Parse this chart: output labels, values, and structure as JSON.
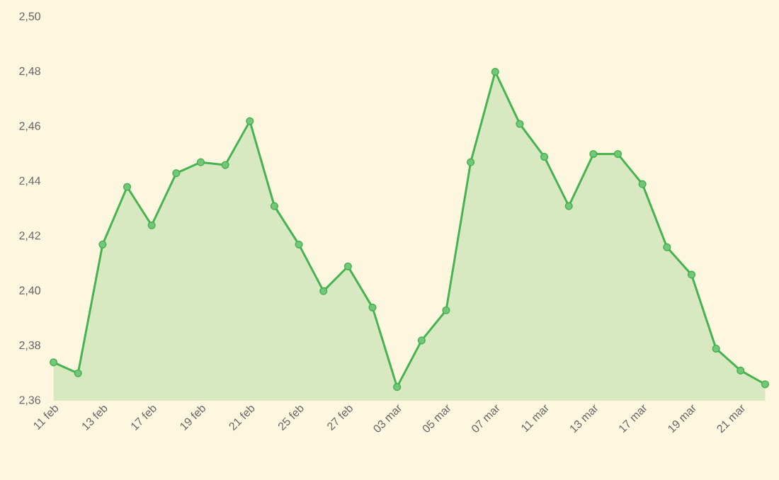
{
  "chart_data": {
    "type": "area",
    "color": "#45b34f",
    "marker": "circle",
    "grid": false,
    "categories": [
      "11 feb",
      null,
      "13 feb",
      null,
      "17 feb",
      null,
      "19 feb",
      null,
      "21 feb",
      null,
      "25 feb",
      null,
      "27 feb",
      null,
      "03 mar",
      null,
      "05 mar",
      null,
      "07 mar",
      null,
      "11 mar",
      null,
      "13 mar",
      null,
      "17 mar",
      null,
      "19 mar",
      null,
      "21 mar",
      null
    ],
    "values": [
      2.374,
      2.37,
      2.417,
      2.438,
      2.424,
      2.443,
      2.447,
      2.446,
      2.462,
      2.431,
      2.417,
      2.4,
      2.409,
      2.394,
      2.365,
      2.382,
      2.393,
      2.447,
      2.48,
      2.461,
      2.449,
      2.431,
      2.45,
      2.45,
      2.439,
      2.416,
      2.406,
      2.379,
      2.371,
      2.366
    ],
    "ylim": [
      2.36,
      2.5
    ],
    "yticks": [
      {
        "value": 2.36,
        "label": "2,36"
      },
      {
        "value": 2.38,
        "label": "2,38"
      },
      {
        "value": 2.4,
        "label": "2,40"
      },
      {
        "value": 2.42,
        "label": "2,42"
      },
      {
        "value": 2.44,
        "label": "2,44"
      },
      {
        "value": 2.46,
        "label": "2,46"
      },
      {
        "value": 2.48,
        "label": "2,48"
      },
      {
        "value": 2.5,
        "label": "2,50"
      }
    ]
  }
}
